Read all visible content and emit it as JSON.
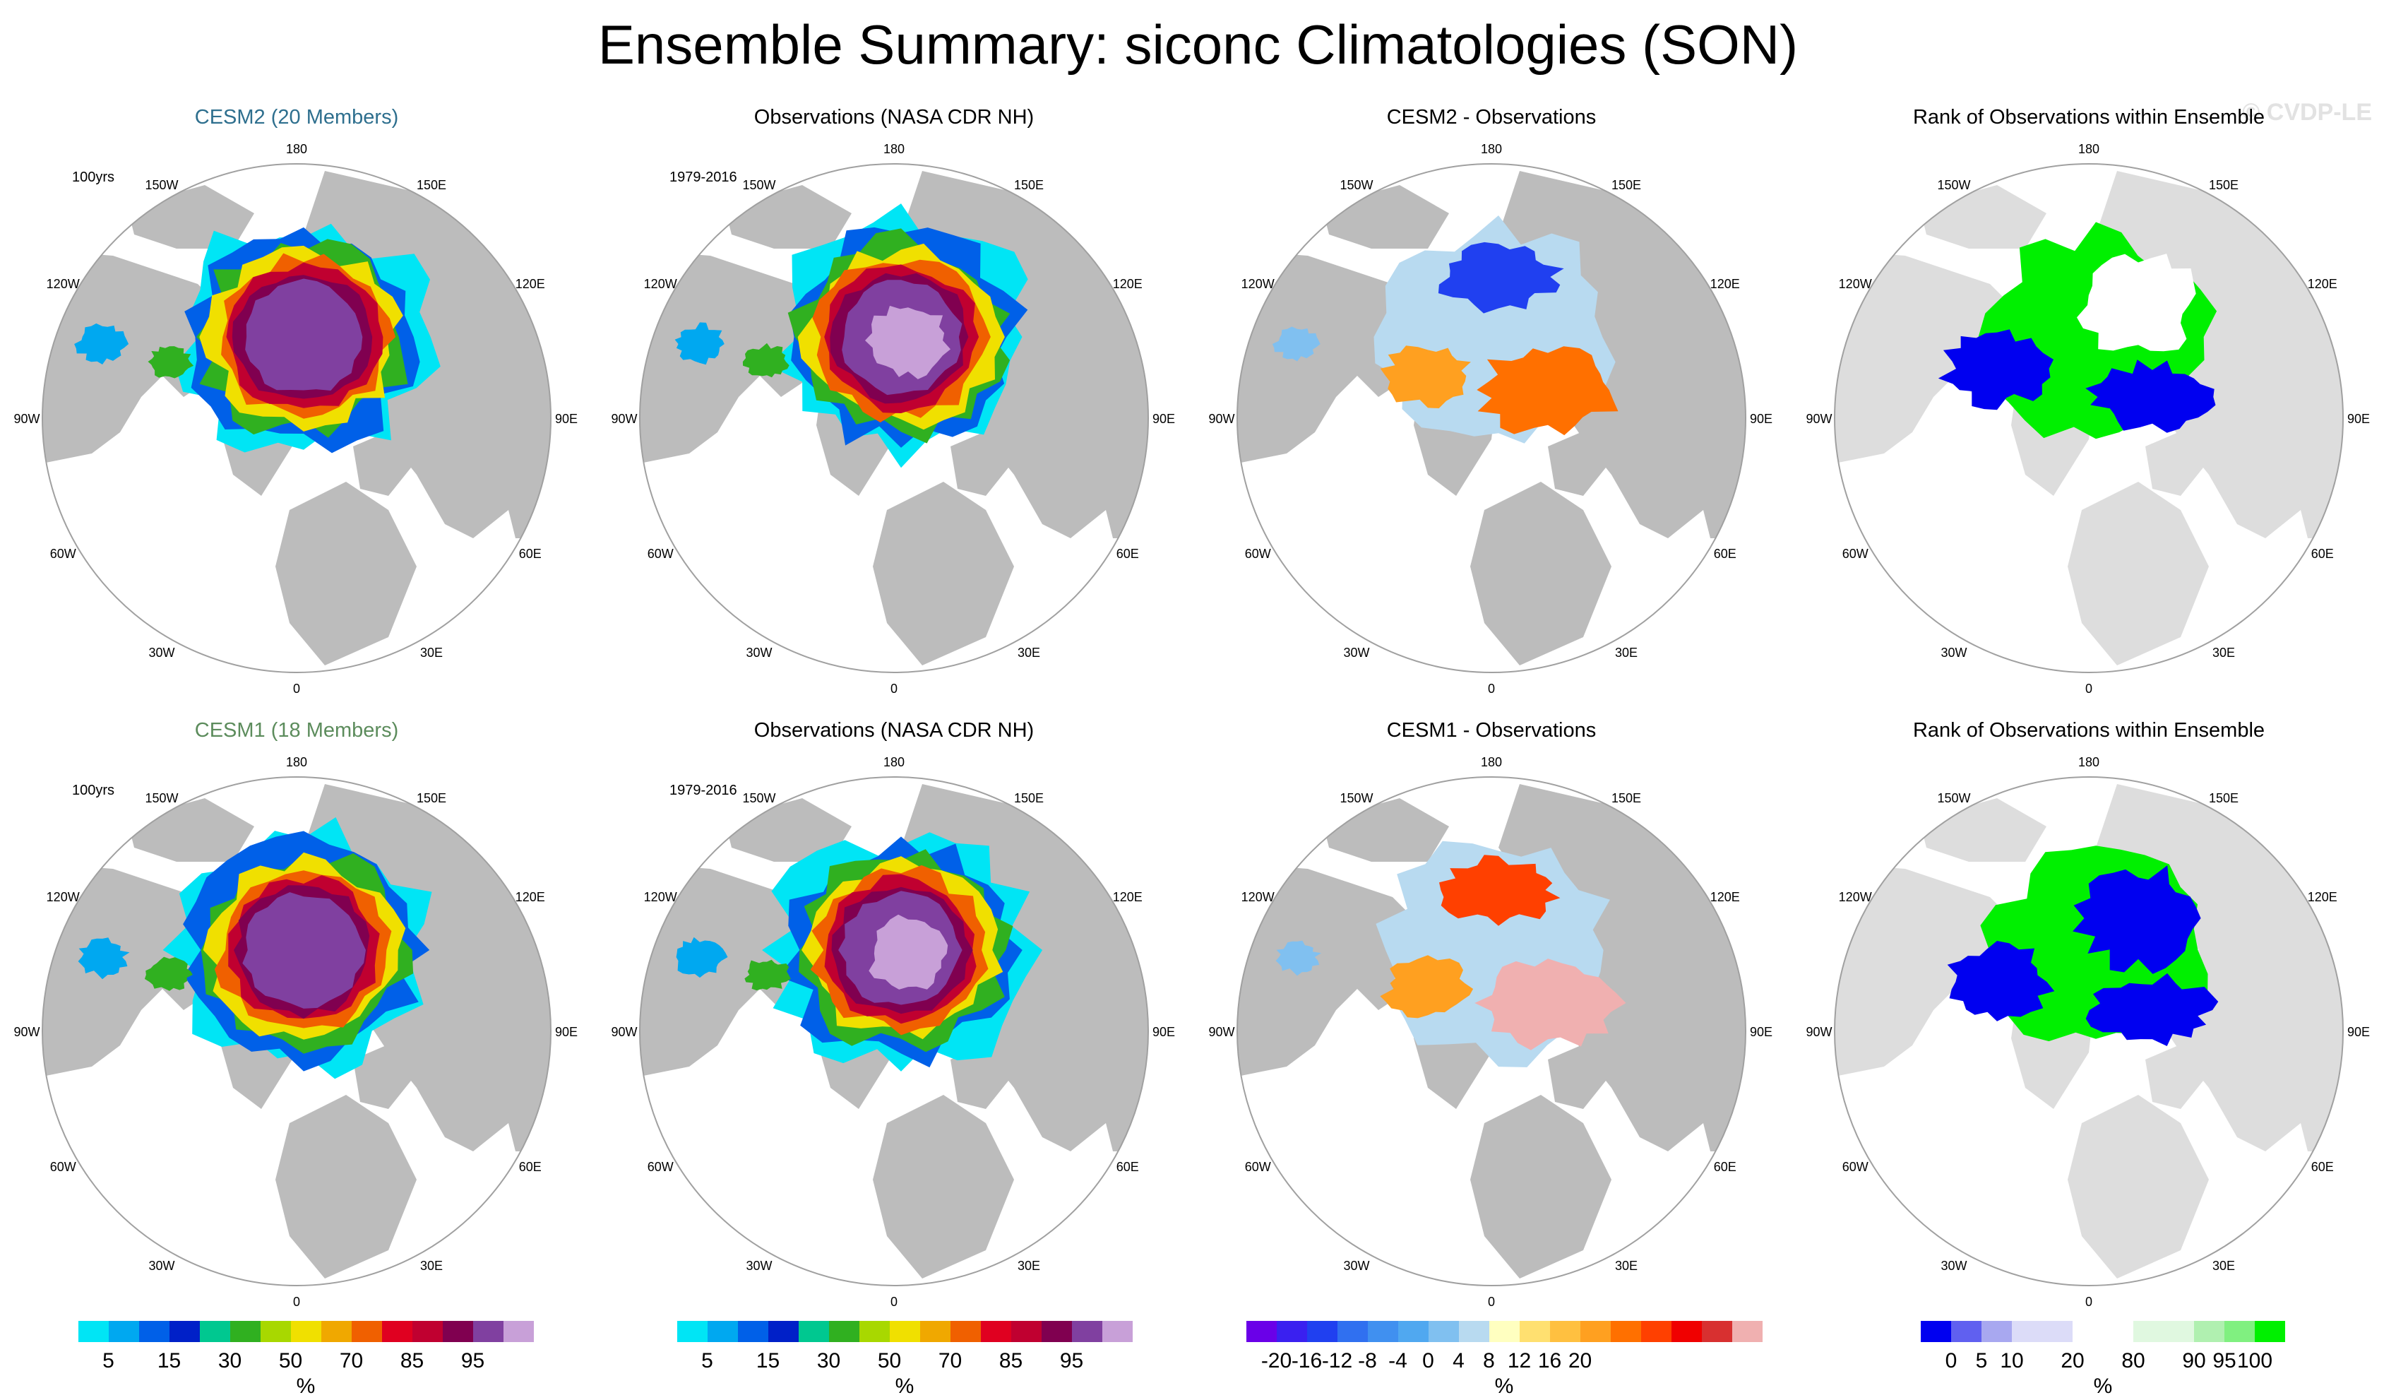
{
  "title": "Ensemble Summary: siconc Climatologies (SON)",
  "watermark": "© CVDP-LE",
  "lon_labels": {
    "n": "180",
    "ne1": "150E",
    "ne2": "120E",
    "e": "90E",
    "se1": "60E",
    "se2": "30E",
    "s": "0",
    "sw2": "30W",
    "sw1": "60W",
    "w": "90W",
    "nw2": "120W",
    "nw1": "150W"
  },
  "colors": {
    "land": "#bcbcbc",
    "ocean": "#ffffff",
    "rank_land": "#dddddd",
    "ensemble_cesm2": "#2e6f8e",
    "ensemble_cesm1": "#5c8c5c"
  },
  "panels": [
    {
      "id": "cesm2-mean",
      "title": "CESM2 (20 Members)",
      "title_color": "#2e6f8e",
      "period": "100yrs",
      "kind": "conc",
      "variant": 1
    },
    {
      "id": "obs-top",
      "title": "Observations (NASA CDR NH)",
      "title_color": "#000000",
      "period": "1979-2016",
      "kind": "conc",
      "variant": 2
    },
    {
      "id": "cesm2-diff",
      "title": "CESM2 - Observations",
      "title_color": "#000000",
      "period": "",
      "kind": "diff",
      "variant": 3
    },
    {
      "id": "rank-top",
      "title": "Rank of Observations within Ensemble",
      "title_color": "#000000",
      "period": "",
      "kind": "rank",
      "variant": 4
    },
    {
      "id": "cesm1-mean",
      "title": "CESM1 (18 Members)",
      "title_color": "#5c8c5c",
      "period": "100yrs",
      "kind": "conc",
      "variant": 5
    },
    {
      "id": "obs-bottom",
      "title": "Observations (NASA CDR NH)",
      "title_color": "#000000",
      "period": "1979-2016",
      "kind": "conc",
      "variant": 6
    },
    {
      "id": "cesm1-diff",
      "title": "CESM1 - Observations",
      "title_color": "#000000",
      "period": "",
      "kind": "diff",
      "variant": 7
    },
    {
      "id": "rank-bottom",
      "title": "Rank of Observations within Ensemble",
      "title_color": "#000000",
      "period": "",
      "kind": "rank",
      "variant": 8
    }
  ],
  "colorbars": [
    {
      "id": "conc-1",
      "unit": "%",
      "colors": [
        "#00e5f5",
        "#00a8f0",
        "#0060e8",
        "#0020c8",
        "#00c890",
        "#30b020",
        "#a8d800",
        "#f0e000",
        "#f0a800",
        "#f06000",
        "#e00020",
        "#c00030",
        "#800050",
        "#8040a0",
        "#c8a0d8"
      ],
      "tick_labels": [
        "5",
        "15",
        "30",
        "50",
        "70",
        "85",
        "95"
      ],
      "tick_after_box": [
        1,
        3,
        5,
        7,
        9,
        11,
        13
      ]
    },
    {
      "id": "conc-2",
      "unit": "%",
      "colors": [
        "#00e5f5",
        "#00a8f0",
        "#0060e8",
        "#0020c8",
        "#00c890",
        "#30b020",
        "#a8d800",
        "#f0e000",
        "#f0a800",
        "#f06000",
        "#e00020",
        "#c00030",
        "#800050",
        "#8040a0",
        "#c8a0d8"
      ],
      "tick_labels": [
        "5",
        "15",
        "30",
        "50",
        "70",
        "85",
        "95"
      ],
      "tick_after_box": [
        1,
        3,
        5,
        7,
        9,
        11,
        13
      ]
    },
    {
      "id": "diff",
      "unit": "%",
      "colors": [
        "#6a00e8",
        "#3a20f0",
        "#2040f0",
        "#3070f0",
        "#4090f0",
        "#50a8f0",
        "#80c0f0",
        "#b8daf0",
        "#ffffc0",
        "#ffe070",
        "#ffc040",
        "#ffa020",
        "#ff7000",
        "#ff4000",
        "#f00000",
        "#d83030",
        "#f0b0b0"
      ],
      "tick_labels": [
        "-20",
        "-16",
        "-12",
        "-8",
        "-4",
        "0",
        "4",
        "8",
        "12",
        "16",
        "20"
      ],
      "tick_after_box": [
        1,
        2,
        3,
        4,
        5,
        6,
        7,
        8,
        9,
        10,
        11
      ]
    },
    {
      "id": "rank",
      "unit": "%",
      "colors": [
        "#0000f0",
        "#6060f0",
        "#a8a8f0",
        "#dcdcf8",
        "#dcdcf8",
        "#ffffff",
        "#ffffff",
        "#e0f8e0",
        "#e0f8e0",
        "#b0f0b0",
        "#80f080",
        "#00f000"
      ],
      "tick_labels": [
        "0",
        "5",
        "10",
        "20",
        "80",
        "90",
        "95",
        "100"
      ],
      "tick_after_box": [
        1,
        2,
        3,
        5,
        7,
        9,
        10,
        11
      ]
    }
  ]
}
